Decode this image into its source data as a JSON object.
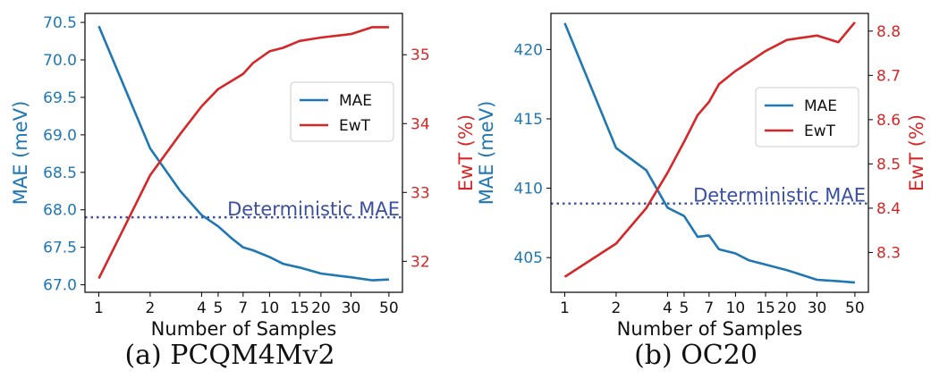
{
  "colors": {
    "mae": "#1f77b4",
    "ewt": "#d62728",
    "deterministic": "#3a4fa0",
    "axis": "#000000"
  },
  "chart_data": [
    {
      "type": "line",
      "caption": "(a) PCQM4Mv2",
      "xlabel": "Number of Samples",
      "ylabel": "MAE (meV)",
      "y2label": "EwT (%)",
      "xscale": "log",
      "xlim": [
        0.83,
        60
      ],
      "xticks": [
        1,
        2,
        4,
        5,
        7,
        10,
        15,
        20,
        30,
        50
      ],
      "ylim": [
        66.9,
        70.62
      ],
      "yticks": [
        67.0,
        67.5,
        68.0,
        68.5,
        69.0,
        69.5,
        70.0,
        70.5
      ],
      "y2lim": [
        31.55,
        35.6
      ],
      "y2ticks": [
        32,
        33,
        34,
        35
      ],
      "legend_position": "center-right",
      "annotation": "Deterministic MAE",
      "deterministic_mae": 67.9,
      "series": [
        {
          "name": "MAE",
          "axis": "left",
          "x": [
            1,
            2,
            3,
            4,
            5,
            6,
            7,
            8,
            10,
            12,
            15,
            20,
            30,
            40,
            50
          ],
          "values": [
            70.45,
            68.82,
            68.25,
            67.93,
            67.78,
            67.62,
            67.5,
            67.46,
            67.37,
            67.28,
            67.23,
            67.15,
            67.1,
            67.06,
            67.07
          ]
        },
        {
          "name": "EwT",
          "axis": "right",
          "x": [
            1,
            2,
            3,
            4,
            5,
            6,
            7,
            8,
            10,
            12,
            15,
            20,
            30,
            40,
            50
          ],
          "values": [
            31.75,
            33.25,
            33.85,
            34.25,
            34.5,
            34.62,
            34.72,
            34.88,
            35.05,
            35.1,
            35.2,
            35.25,
            35.3,
            35.4,
            35.4
          ]
        }
      ]
    },
    {
      "type": "line",
      "caption": "(b) OC20",
      "xlabel": "Number of Samples",
      "ylabel": "MAE (meV)",
      "y2label": "EwT (%)",
      "xscale": "log",
      "xlim": [
        0.83,
        60
      ],
      "xticks": [
        1,
        2,
        4,
        5,
        7,
        10,
        15,
        20,
        30,
        50
      ],
      "ylim": [
        402.5,
        422.6
      ],
      "yticks": [
        405,
        410,
        415,
        420
      ],
      "y2lim": [
        8.21,
        8.84
      ],
      "y2ticks": [
        8.3,
        8.4,
        8.5,
        8.6,
        8.7,
        8.8
      ],
      "legend_position": "center-right",
      "annotation": "Deterministic MAE",
      "deterministic_mae": 408.9,
      "series": [
        {
          "name": "MAE",
          "axis": "left",
          "x": [
            1,
            2,
            3,
            4,
            5,
            6,
            7,
            8,
            10,
            12,
            15,
            20,
            30,
            40,
            50
          ],
          "values": [
            421.9,
            412.9,
            411.3,
            408.6,
            408.0,
            406.5,
            406.6,
            405.6,
            405.3,
            404.8,
            404.5,
            404.1,
            403.4,
            403.3,
            403.2
          ]
        },
        {
          "name": "EwT",
          "axis": "right",
          "x": [
            1,
            2,
            3,
            4,
            5,
            6,
            7,
            8,
            10,
            12,
            15,
            20,
            30,
            40,
            50
          ],
          "values": [
            8.245,
            8.32,
            8.4,
            8.48,
            8.55,
            8.61,
            8.64,
            8.68,
            8.71,
            8.73,
            8.755,
            8.78,
            8.79,
            8.775,
            8.82
          ]
        }
      ]
    }
  ]
}
